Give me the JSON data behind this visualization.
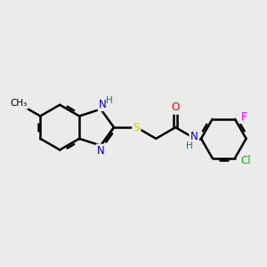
{
  "background_color": "#EBEBEB",
  "bond_color": "#000000",
  "bond_width": 1.8,
  "atom_colors": {
    "N": "#0000CC",
    "S": "#CCCC00",
    "O": "#FF0000",
    "Cl": "#00BB00",
    "F": "#FF00FF",
    "C": "#000000",
    "H": "#336666"
  },
  "font_size": 8.5,
  "small_font": 7.5
}
